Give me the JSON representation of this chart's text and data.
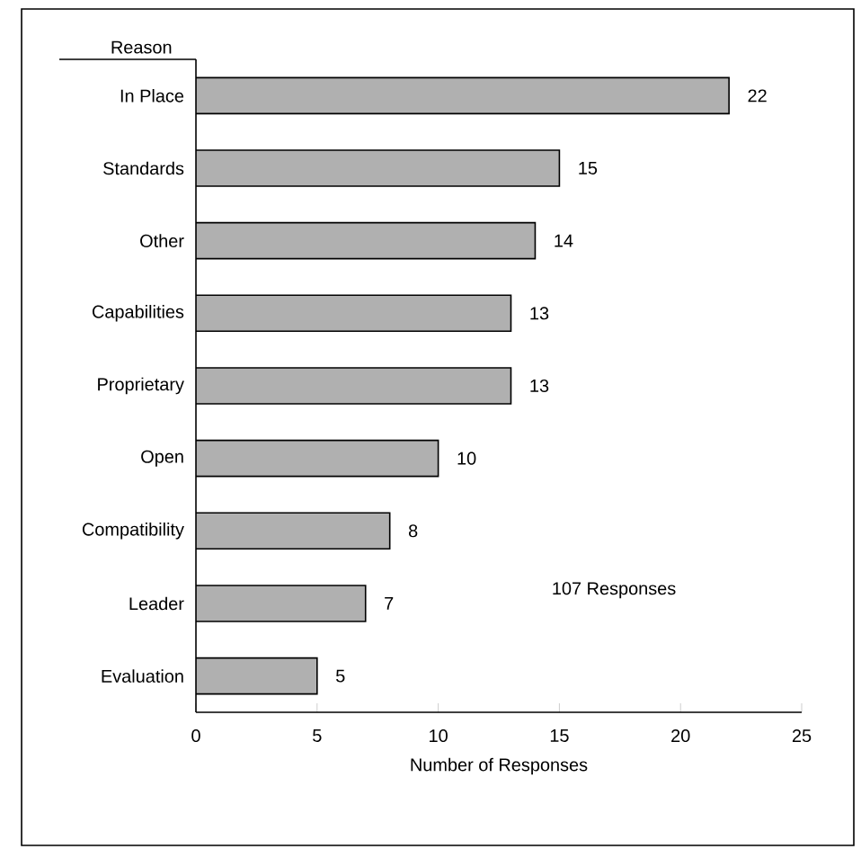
{
  "chart_data": {
    "type": "bar",
    "orientation": "horizontal",
    "ylabel": "Reason",
    "xlabel": "Number of Responses",
    "categories": [
      "In Place",
      "Standards",
      "Other",
      "Capabilities",
      "Proprietary",
      "Open",
      "Compatibility",
      "Leader",
      "Evaluation"
    ],
    "values": [
      22,
      15,
      14,
      13,
      13,
      10,
      8,
      7,
      5
    ],
    "color": "#b0b0b0",
    "data_labels": true,
    "xlim": [
      0,
      25
    ],
    "xticks": [
      0,
      5,
      10,
      15,
      20,
      25
    ],
    "annotations": [
      "107 Responses"
    ]
  }
}
